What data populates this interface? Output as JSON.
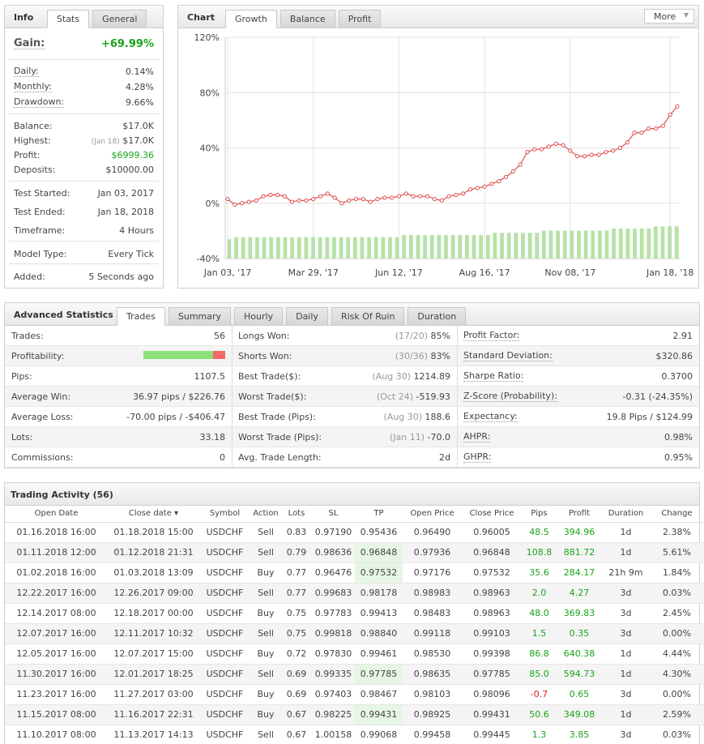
{
  "info": {
    "title": "Info",
    "tabs": [
      "Stats",
      "General"
    ],
    "gain_label": "Gain:",
    "gain_value": "+69.99%",
    "rows1": [
      [
        "Daily:",
        "0.14%"
      ],
      [
        "Monthly:",
        "4.28%"
      ],
      [
        "Drawdown:",
        "9.66%"
      ]
    ],
    "balance": [
      "Balance:",
      "$17.0K"
    ],
    "highest": [
      "Highest:",
      "(Jan 18)",
      "$17.0K"
    ],
    "profit": [
      "Profit:",
      "$6999.36"
    ],
    "deposits": [
      "Deposits:",
      "$10000.00"
    ],
    "rows3": [
      [
        "Test Started:",
        "Jan 03, 2017"
      ],
      [
        "Test Ended:",
        "Jan 18, 2018"
      ],
      [
        "Timeframe:",
        "4 Hours"
      ]
    ],
    "model": [
      "Model Type:",
      "Every Tick"
    ],
    "added": [
      "Added:",
      "5 Seconds ago"
    ]
  },
  "chart": {
    "title": "Chart",
    "tabs": [
      "Growth",
      "Balance",
      "Profit"
    ],
    "more_label": "More",
    "colors": {
      "line": "#e05050",
      "bar": "#b5e2a6"
    }
  },
  "chart_data": {
    "type": "line",
    "yticks": [
      "120%",
      "80%",
      "40%",
      "0%",
      "-40%"
    ],
    "ylim": [
      -40,
      120
    ],
    "xticks": [
      "Jan 03, '17",
      "Mar 29, '17",
      "Jun 12, '17",
      "Aug 16, '17",
      "Nov 08, '17",
      "Jan 18, '18"
    ],
    "series": [
      {
        "values": [
          3,
          -1,
          0,
          1,
          2,
          5,
          6,
          6,
          5,
          1,
          2,
          2,
          3,
          5,
          7,
          4,
          0,
          2,
          3,
          3,
          1,
          3,
          4,
          4,
          5,
          7,
          5,
          5,
          5,
          3,
          2,
          5,
          6,
          7,
          10,
          11,
          12,
          14,
          16,
          19,
          23,
          28,
          37,
          39,
          39,
          41,
          43,
          42,
          38,
          34,
          34,
          35,
          35,
          37,
          38,
          40,
          44,
          51,
          51,
          54,
          54,
          56,
          64,
          70
        ]
      }
    ],
    "bars": [
      [
        9,
        10,
        10,
        10,
        10,
        10,
        10,
        10,
        10,
        10,
        10,
        10,
        10,
        10,
        10,
        10,
        10,
        10,
        10,
        10,
        10,
        10,
        10,
        10,
        10,
        11,
        11,
        11,
        11,
        11,
        11,
        11,
        11,
        11,
        11,
        11,
        11,
        11,
        12,
        12,
        12,
        12,
        12,
        12,
        12,
        13,
        13,
        13,
        13,
        13,
        13,
        13,
        13,
        13,
        13,
        14,
        14,
        14,
        14,
        14,
        14,
        15,
        15,
        15,
        15
      ]
    ]
  },
  "adv": {
    "title": "Advanced Statistics",
    "tabs": [
      "Trades",
      "Summary",
      "Hourly",
      "Daily",
      "Risk Of Ruin",
      "Duration"
    ],
    "col1": [
      [
        "Trades:",
        "56"
      ],
      [
        "Profitability:",
        ""
      ],
      [
        "Pips:",
        "1107.5"
      ],
      [
        "Average Win:",
        "36.97 pips / $226.76"
      ],
      [
        "Average Loss:",
        "-70.00 pips / -$406.47"
      ],
      [
        "Lots:",
        "33.18"
      ],
      [
        "Commissions:",
        "0"
      ]
    ],
    "profitability_win": 0.85,
    "col2": [
      [
        "Longs Won:",
        "(17/20)",
        "85%"
      ],
      [
        "Shorts Won:",
        "(30/36)",
        "83%"
      ],
      [
        "Best Trade($):",
        "(Aug 30)",
        "1214.89"
      ],
      [
        "Worst Trade($):",
        "(Oct 24)",
        "-519.93"
      ],
      [
        "Best Trade (Pips):",
        "(Aug 30)",
        "188.6"
      ],
      [
        "Worst Trade (Pips):",
        "(Jan 11)",
        "-70.0"
      ],
      [
        "Avg. Trade Length:",
        "",
        "2d"
      ]
    ],
    "col3": [
      [
        "Profit Factor:",
        "2.91"
      ],
      [
        "Standard Deviation:",
        "$320.86"
      ],
      [
        "Sharpe Ratio:",
        "0.3700"
      ],
      [
        "Z-Score (Probability):",
        "-0.31 (-24.35%)"
      ],
      [
        "Expectancy:",
        "19.8 Pips / $124.99"
      ],
      [
        "AHPR:",
        "0.98%"
      ],
      [
        "GHPR:",
        "0.95%"
      ]
    ]
  },
  "activity": {
    "title": "Trading Activity (56)",
    "columns": [
      "Open Date",
      "Close date ▾",
      "Symbol",
      "Action",
      "Lots",
      "SL",
      "TP",
      "Open Price",
      "Close Price",
      "Pips",
      "Profit",
      "Duration",
      "Change"
    ],
    "rows": [
      [
        "01.16.2018 16:00",
        "01.18.2018 15:00",
        "USDCHF",
        "Sell",
        "0.83",
        "0.97190",
        "0.95436",
        "0.96490",
        "0.96005",
        "48.5",
        "394.96",
        "1d",
        "2.38%"
      ],
      [
        "01.11.2018 12:00",
        "01.12.2018 21:31",
        "USDCHF",
        "Sell",
        "0.79",
        "0.98636",
        "0.96848",
        "0.97936",
        "0.96848",
        "108.8",
        "881.72",
        "1d",
        "5.61%"
      ],
      [
        "01.02.2018 16:00",
        "01.03.2018 13:09",
        "USDCHF",
        "Buy",
        "0.77",
        "0.96476",
        "0.97532",
        "0.97176",
        "0.97532",
        "35.6",
        "284.17",
        "21h 9m",
        "1.84%"
      ],
      [
        "12.22.2017 16:00",
        "12.26.2017 09:00",
        "USDCHF",
        "Sell",
        "0.77",
        "0.99683",
        "0.98178",
        "0.98983",
        "0.98963",
        "2.0",
        "4.27",
        "3d",
        "0.03%"
      ],
      [
        "12.14.2017 08:00",
        "12.18.2017 00:00",
        "USDCHF",
        "Buy",
        "0.75",
        "0.97783",
        "0.99413",
        "0.98483",
        "0.98963",
        "48.0",
        "369.83",
        "3d",
        "2.45%"
      ],
      [
        "12.07.2017 16:00",
        "12.11.2017 10:32",
        "USDCHF",
        "Sell",
        "0.75",
        "0.99818",
        "0.98840",
        "0.99118",
        "0.99103",
        "1.5",
        "0.35",
        "3d",
        "0.00%"
      ],
      [
        "12.05.2017 16:00",
        "12.07.2017 15:00",
        "USDCHF",
        "Buy",
        "0.72",
        "0.97830",
        "0.99461",
        "0.98530",
        "0.99398",
        "86.8",
        "640.38",
        "1d",
        "4.44%"
      ],
      [
        "11.30.2017 16:00",
        "12.01.2017 18:25",
        "USDCHF",
        "Sell",
        "0.69",
        "0.99335",
        "0.97785",
        "0.98635",
        "0.97785",
        "85.0",
        "594.73",
        "1d",
        "4.30%"
      ],
      [
        "11.23.2017 16:00",
        "11.27.2017 03:00",
        "USDCHF",
        "Buy",
        "0.69",
        "0.97403",
        "0.98467",
        "0.98103",
        "0.98096",
        "-0.7",
        "0.65",
        "3d",
        "0.00%"
      ],
      [
        "11.15.2017 08:00",
        "11.16.2017 22:31",
        "USDCHF",
        "Buy",
        "0.67",
        "0.98225",
        "0.99431",
        "0.98925",
        "0.99431",
        "50.6",
        "349.08",
        "1d",
        "2.59%"
      ],
      [
        "11.10.2017 08:00",
        "11.13.2017 14:13",
        "USDCHF",
        "Sell",
        "0.67",
        "1.00158",
        "0.99068",
        "0.99458",
        "0.99445",
        "1.3",
        "3.85",
        "3d",
        "0.03%"
      ]
    ],
    "tp_hit_rows": [
      1,
      2,
      7,
      9
    ]
  }
}
